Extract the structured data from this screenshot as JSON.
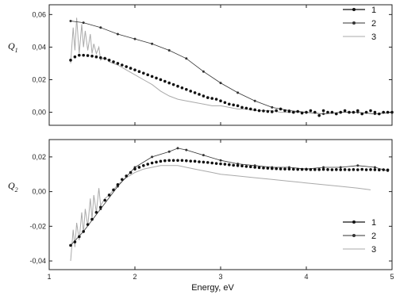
{
  "chart_data": [
    {
      "type": "line",
      "panel": "top",
      "ylabel": "Q",
      "ylabel_sub": "1",
      "xlim": [
        1,
        5
      ],
      "ylim": [
        -0.008,
        0.066
      ],
      "yticks": [
        0.0,
        0.02,
        0.04,
        0.06
      ],
      "ytick_labels": [
        "0,00",
        "0,02",
        "0,04",
        "0,06"
      ],
      "grid": false,
      "legend_placement": "top-right",
      "series": [
        {
          "name": "1",
          "style": "dots",
          "color": "#111111",
          "x": [
            1.25,
            1.3,
            1.35,
            1.4,
            1.45,
            1.5,
            1.55,
            1.6,
            1.65,
            1.7,
            1.75,
            1.8,
            1.85,
            1.9,
            1.95,
            2.0,
            2.05,
            2.1,
            2.15,
            2.2,
            2.25,
            2.3,
            2.35,
            2.4,
            2.45,
            2.5,
            2.55,
            2.6,
            2.65,
            2.7,
            2.75,
            2.8,
            2.85,
            2.9,
            2.95,
            3.0,
            3.05,
            3.1,
            3.15,
            3.2,
            3.25,
            3.3,
            3.35,
            3.4,
            3.45,
            3.5,
            3.55,
            3.6,
            3.65,
            3.7,
            3.75,
            3.8,
            3.85,
            3.9,
            3.95,
            4.0,
            4.05,
            4.1,
            4.15,
            4.2,
            4.25,
            4.3,
            4.35,
            4.4,
            4.45,
            4.5,
            4.55,
            4.6,
            4.65,
            4.7,
            4.75,
            4.8,
            4.85,
            4.9,
            4.95,
            5.0
          ],
          "y": [
            0.032,
            0.034,
            0.035,
            0.035,
            0.0348,
            0.0345,
            0.034,
            0.0335,
            0.033,
            0.032,
            0.031,
            0.03,
            0.029,
            0.028,
            0.027,
            0.026,
            0.025,
            0.024,
            0.023,
            0.022,
            0.021,
            0.02,
            0.019,
            0.018,
            0.017,
            0.016,
            0.015,
            0.014,
            0.013,
            0.012,
            0.011,
            0.01,
            0.009,
            0.0085,
            0.008,
            0.007,
            0.006,
            0.005,
            0.0045,
            0.004,
            0.003,
            0.0025,
            0.002,
            0.0015,
            0.001,
            0.0008,
            0.0005,
            0.0003,
            0.001,
            0.002,
            0.001,
            0.0005,
            0.0,
            0.0005,
            -0.0005,
            0.0,
            0.001,
            0.0,
            -0.002,
            0.001,
            0.0,
            0.0,
            -0.001,
            0.0,
            0.001,
            0.0,
            0.0,
            0.001,
            -0.001,
            0.0,
            0.001,
            0.0,
            -0.001,
            0.0,
            0.0,
            0.0
          ]
        },
        {
          "name": "2",
          "style": "line-markers",
          "color": "#333333",
          "x": [
            1.25,
            1.4,
            1.6,
            1.8,
            2.0,
            2.2,
            2.4,
            2.6,
            2.8,
            3.0,
            3.2,
            3.4,
            3.6,
            3.8,
            4.0,
            4.2,
            4.4,
            4.6,
            4.8,
            5.0
          ],
          "y": [
            0.056,
            0.055,
            0.052,
            0.048,
            0.045,
            0.042,
            0.038,
            0.033,
            0.025,
            0.018,
            0.012,
            0.007,
            0.003,
            0.001,
            0.0,
            -0.001,
            0.0,
            0.0,
            -0.001,
            0.0
          ]
        },
        {
          "name": "3",
          "style": "line",
          "color": "#aaaaaa",
          "x": [
            1.25,
            1.28,
            1.3,
            1.32,
            1.35,
            1.38,
            1.4,
            1.42,
            1.45,
            1.48,
            1.5,
            1.52,
            1.55,
            1.58,
            1.6,
            1.65,
            1.7,
            1.8,
            1.9,
            2.0,
            2.1,
            2.2,
            2.3,
            2.4,
            2.5,
            2.6,
            2.7,
            2.8,
            2.9,
            3.0,
            3.1,
            3.2,
            3.3,
            3.4,
            3.5,
            3.6,
            3.7,
            3.8,
            3.9,
            4.0
          ],
          "y": [
            0.03,
            0.052,
            0.038,
            0.058,
            0.036,
            0.054,
            0.04,
            0.05,
            0.038,
            0.048,
            0.036,
            0.042,
            0.036,
            0.04,
            0.032,
            0.034,
            0.031,
            0.029,
            0.026,
            0.023,
            0.02,
            0.017,
            0.013,
            0.01,
            0.008,
            0.007,
            0.006,
            0.005,
            0.004,
            0.004,
            0.003,
            0.002,
            0.002,
            0.001,
            0.001,
            0.001,
            0.0,
            0.0,
            0.0,
            0.0
          ]
        }
      ]
    },
    {
      "type": "line",
      "panel": "bottom",
      "ylabel": "Q",
      "ylabel_sub": "2",
      "xlabel": "Energy, eV",
      "xlim": [
        1,
        5
      ],
      "ylim": [
        -0.045,
        0.03
      ],
      "xticks": [
        1,
        2,
        3,
        4,
        5
      ],
      "xtick_labels": [
        "1",
        "2",
        "3",
        "4",
        "5"
      ],
      "yticks": [
        -0.04,
        -0.02,
        0.0,
        0.02
      ],
      "ytick_labels": [
        "-0,04",
        "-0,02",
        "0,00",
        "0,02"
      ],
      "grid": false,
      "legend_placement": "bottom-right",
      "series": [
        {
          "name": "1",
          "style": "dots",
          "color": "#111111",
          "x": [
            1.25,
            1.3,
            1.35,
            1.4,
            1.45,
            1.5,
            1.55,
            1.6,
            1.65,
            1.7,
            1.75,
            1.8,
            1.85,
            1.9,
            1.95,
            2.0,
            2.05,
            2.1,
            2.15,
            2.2,
            2.25,
            2.3,
            2.35,
            2.4,
            2.45,
            2.5,
            2.55,
            2.6,
            2.65,
            2.7,
            2.75,
            2.8,
            2.85,
            2.9,
            2.95,
            3.0,
            3.05,
            3.1,
            3.15,
            3.2,
            3.25,
            3.3,
            3.35,
            3.4,
            3.45,
            3.5,
            3.55,
            3.6,
            3.65,
            3.7,
            3.75,
            3.8,
            3.85,
            3.9,
            3.95,
            4.0,
            4.05,
            4.1,
            4.15,
            4.2,
            4.25,
            4.3,
            4.35,
            4.4,
            4.45,
            4.5,
            4.55,
            4.6,
            4.65,
            4.7,
            4.75,
            4.8,
            4.85,
            4.9,
            4.95
          ],
          "y": [
            -0.031,
            -0.029,
            -0.026,
            -0.023,
            -0.019,
            -0.016,
            -0.012,
            -0.009,
            -0.005,
            -0.002,
            0.001,
            0.004,
            0.007,
            0.009,
            0.011,
            0.013,
            0.014,
            0.015,
            0.0158,
            0.0165,
            0.017,
            0.0175,
            0.0178,
            0.018,
            0.018,
            0.018,
            0.018,
            0.0178,
            0.0176,
            0.0175,
            0.0172,
            0.017,
            0.0168,
            0.0165,
            0.0162,
            0.016,
            0.0158,
            0.0155,
            0.0152,
            0.015,
            0.0148,
            0.0145,
            0.0143,
            0.014,
            0.0138,
            0.0136,
            0.0135,
            0.0133,
            0.0132,
            0.0131,
            0.013,
            0.013,
            0.0129,
            0.0128,
            0.0128,
            0.0128,
            0.0127,
            0.0127,
            0.0127,
            0.0128,
            0.0127,
            0.0126,
            0.0127,
            0.0126,
            0.0127,
            0.0126,
            0.0127,
            0.0126,
            0.0128,
            0.0126,
            0.0127,
            0.0126,
            0.0125,
            0.0126,
            0.0125
          ]
        },
        {
          "name": "2",
          "style": "line-markers",
          "color": "#333333",
          "x": [
            1.25,
            1.4,
            1.6,
            1.8,
            2.0,
            2.2,
            2.4,
            2.5,
            2.6,
            2.8,
            3.0,
            3.2,
            3.4,
            3.6,
            3.8,
            4.0,
            4.2,
            4.4,
            4.6,
            4.8,
            4.95
          ],
          "y": [
            -0.031,
            -0.023,
            -0.01,
            0.003,
            0.014,
            0.02,
            0.023,
            0.025,
            0.024,
            0.021,
            0.018,
            0.016,
            0.015,
            0.014,
            0.014,
            0.013,
            0.014,
            0.014,
            0.015,
            0.014,
            0.012
          ]
        },
        {
          "name": "3",
          "style": "line",
          "color": "#aaaaaa",
          "x": [
            1.25,
            1.28,
            1.3,
            1.32,
            1.35,
            1.38,
            1.4,
            1.42,
            1.45,
            1.48,
            1.5,
            1.52,
            1.55,
            1.58,
            1.6,
            1.65,
            1.7,
            1.8,
            1.9,
            2.0,
            2.1,
            2.2,
            2.3,
            2.4,
            2.5,
            2.6,
            2.7,
            2.8,
            2.9,
            3.0,
            3.2,
            3.4,
            3.6,
            3.8,
            4.0,
            4.2,
            4.4,
            4.6,
            4.75
          ],
          "y": [
            -0.04,
            -0.022,
            -0.032,
            -0.018,
            -0.028,
            -0.012,
            -0.024,
            -0.01,
            -0.02,
            -0.004,
            -0.016,
            -0.002,
            -0.012,
            0.002,
            -0.008,
            -0.004,
            -0.002,
            0.004,
            0.008,
            0.011,
            0.013,
            0.014,
            0.015,
            0.015,
            0.015,
            0.014,
            0.013,
            0.012,
            0.011,
            0.01,
            0.009,
            0.008,
            0.007,
            0.006,
            0.005,
            0.004,
            0.003,
            0.002,
            0.001
          ]
        }
      ]
    }
  ]
}
